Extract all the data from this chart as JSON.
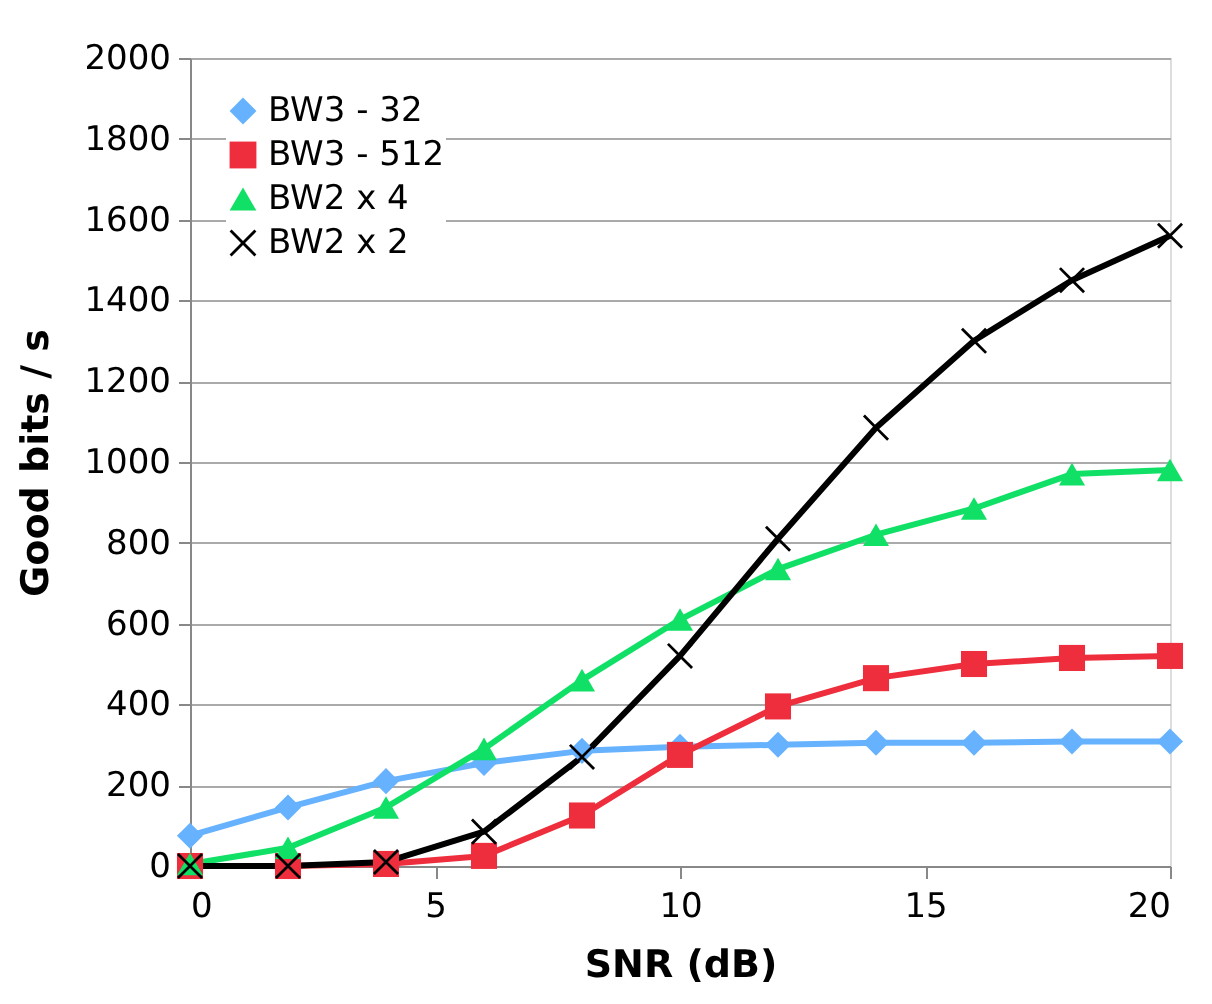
{
  "chart_data": {
    "type": "line",
    "xlabel": "SNR (dB)",
    "ylabel": "Good bits / s",
    "x": [
      0,
      2,
      4,
      6,
      8,
      10,
      12,
      14,
      16,
      18,
      20
    ],
    "series": [
      {
        "name": "BW3 - 32",
        "color": "#66b2ff",
        "marker": "diamond",
        "values": [
          75,
          145,
          210,
          255,
          285,
          295,
          300,
          305,
          305,
          308,
          308
        ]
      },
      {
        "name": "BW3 - 512",
        "color": "#ee2e3c",
        "marker": "square",
        "values": [
          0,
          0,
          5,
          25,
          125,
          275,
          395,
          465,
          500,
          515,
          520
        ]
      },
      {
        "name": "BW2 x 4",
        "color": "#11e066",
        "marker": "triangle",
        "values": [
          5,
          45,
          145,
          290,
          460,
          610,
          735,
          820,
          885,
          970,
          980
        ]
      },
      {
        "name": "BW2 x 2",
        "color": "#000000",
        "marker": "cross",
        "values": [
          0,
          0,
          10,
          85,
          270,
          520,
          810,
          1085,
          1300,
          1450,
          1560
        ]
      }
    ],
    "xlim": [
      0,
      20
    ],
    "xticks": [
      0,
      5,
      10,
      15,
      20
    ],
    "ylim": [
      0,
      2000
    ],
    "yticks": [
      0,
      200,
      400,
      600,
      800,
      1000,
      1200,
      1400,
      1600,
      1800,
      2000
    ],
    "grid": "y",
    "legend": "top left",
    "line_style": "solid"
  }
}
